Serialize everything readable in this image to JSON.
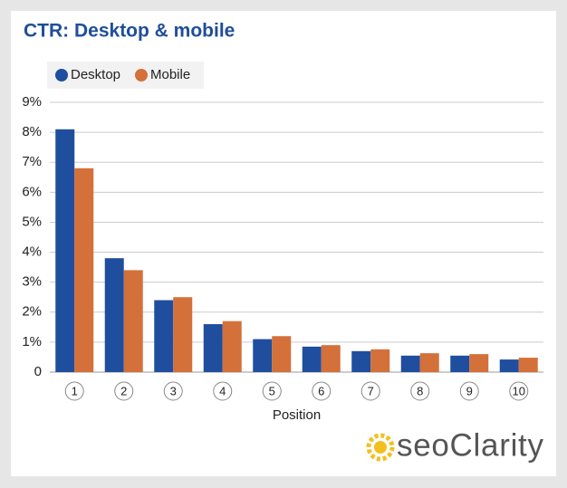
{
  "chart_data": {
    "type": "bar",
    "title": "CTR: Desktop & mobile",
    "categories": [
      "1",
      "2",
      "3",
      "4",
      "5",
      "6",
      "7",
      "8",
      "9",
      "10"
    ],
    "series": [
      {
        "name": "Desktop",
        "color": "#1f4e9e",
        "values": [
          8.1,
          3.8,
          2.4,
          1.6,
          1.1,
          0.85,
          0.7,
          0.55,
          0.55,
          0.42
        ]
      },
      {
        "name": "Mobile",
        "color": "#d4703a",
        "values": [
          6.8,
          3.4,
          2.5,
          1.7,
          1.2,
          0.9,
          0.76,
          0.63,
          0.6,
          0.48
        ]
      }
    ],
    "x_label": "Position",
    "ylim": [
      0,
      9
    ],
    "yticks": [
      0,
      {
        "value": 1,
        "label": "1%"
      },
      {
        "value": 2,
        "label": "2%"
      },
      {
        "value": 3,
        "label": "3%"
      },
      {
        "value": 4,
        "label": "4%"
      },
      {
        "value": 5,
        "label": "5%"
      },
      {
        "value": 6,
        "label": "6%"
      },
      {
        "value": 7,
        "label": "7%"
      },
      {
        "value": 8,
        "label": "8%"
      },
      {
        "value": 9,
        "label": "9%"
      }
    ],
    "grid": true,
    "watermark": "seoClarity"
  }
}
